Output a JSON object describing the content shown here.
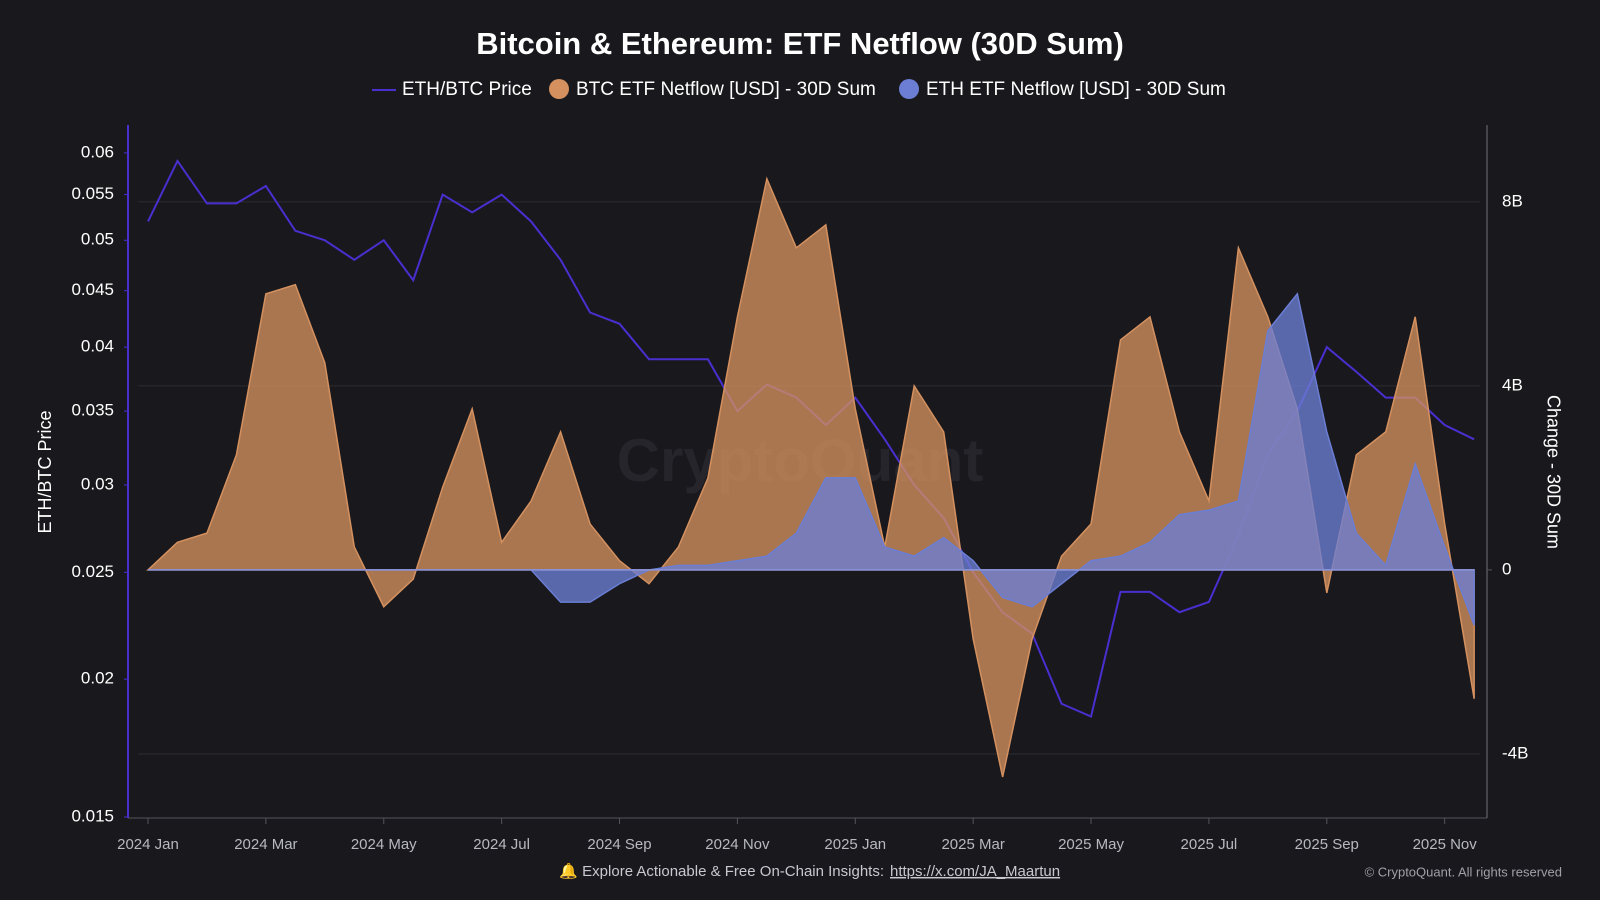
{
  "chart_data": {
    "type": "line",
    "title": "Bitcoin & Ethereum: ETF Netflow (30D Sum)",
    "ylabel": "ETH/BTC Price",
    "y2label": "Change - 30D Sum",
    "categories": [
      "2024 Jan",
      null,
      null,
      null,
      "2024 Mar",
      null,
      null,
      null,
      "2024 May",
      null,
      null,
      null,
      "2024 Jul",
      null,
      null,
      null,
      "2024 Sep",
      null,
      null,
      null,
      "2024 Nov",
      null,
      null,
      null,
      "2025 Jan",
      null,
      null,
      null,
      "2025 Mar",
      null,
      null,
      null,
      "2025 May",
      null,
      null,
      null,
      "2025 Jul",
      null,
      null,
      null,
      "2025 Sep",
      null,
      null,
      null,
      "2025 Nov",
      null
    ],
    "series": [
      {
        "name": "ETH/BTC Price",
        "type": "line",
        "color": "#4a2fd0",
        "values": [
          0.052,
          0.059,
          0.054,
          0.054,
          0.056,
          0.051,
          0.05,
          0.048,
          0.05,
          0.046,
          0.055,
          0.053,
          0.055,
          0.052,
          0.048,
          0.043,
          0.042,
          0.039,
          0.039,
          0.039,
          0.035,
          0.037,
          0.036,
          0.034,
          0.036,
          0.033,
          0.03,
          0.028,
          0.025,
          0.023,
          0.022,
          0.019,
          0.0185,
          0.024,
          0.024,
          0.023,
          0.0235,
          0.027,
          0.032,
          0.035,
          0.04,
          0.038,
          0.036,
          0.036,
          0.034,
          0.033
        ]
      },
      {
        "name": "BTC ETF Netflow [USD] - 30D Sum",
        "type": "area",
        "axis": "y2",
        "color": "#d4915f",
        "values": [
          0,
          600000000,
          800000000,
          2500000000,
          6000000000,
          6200000000,
          4500000000,
          500000000,
          -800000000,
          -200000000,
          1800000000,
          3500000000,
          600000000,
          1500000000,
          3000000000,
          1000000000,
          200000000,
          -300000000,
          500000000,
          2000000000,
          5500000000,
          8500000000,
          7000000000,
          7500000000,
          3500000000,
          500000000,
          4000000000,
          3000000000,
          -1500000000,
          -4500000000,
          -1500000000,
          300000000,
          1000000000,
          5000000000,
          5500000000,
          3000000000,
          1500000000,
          7000000000,
          5500000000,
          3500000000,
          -500000000,
          2500000000,
          3000000000,
          5500000000,
          1000000000,
          -2800000000
        ]
      },
      {
        "name": "ETH ETF Netflow [USD] - 30D Sum",
        "type": "area",
        "axis": "y2",
        "color": "#6b7ed4",
        "values": [
          0,
          0,
          0,
          0,
          0,
          0,
          0,
          0,
          0,
          0,
          0,
          0,
          0,
          0,
          -700000000,
          -700000000,
          -300000000,
          0,
          100000000,
          100000000,
          200000000,
          300000000,
          800000000,
          2000000000,
          2000000000,
          500000000,
          300000000,
          700000000,
          200000000,
          -600000000,
          -800000000,
          -300000000,
          200000000,
          300000000,
          600000000,
          1200000000,
          1300000000,
          1500000000,
          5200000000,
          6000000000,
          3000000000,
          800000000,
          100000000,
          2300000000,
          500000000,
          -1200000000
        ]
      }
    ],
    "ylim": [
      0.015,
      0.0636
    ],
    "log_scale": true,
    "yticks": [
      0.015,
      0.02,
      0.025,
      0.03,
      0.035,
      0.04,
      0.045,
      0.05,
      0.055,
      0.06
    ],
    "y2lim": [
      -5370000000,
      9670000000
    ],
    "y2ticks": [
      {
        "value": -4000000000,
        "label": "-4B"
      },
      0,
      {
        "value": 4000000000,
        "label": "4B"
      },
      {
        "value": 8000000000,
        "label": "8B"
      }
    ],
    "grid": true,
    "watermark": "CryptoQuant",
    "footer": "🔔 Explore Actionable & Free On-Chain Insights:",
    "footer_link": "https://x.com/JA_Maartun",
    "copyright": "© CryptoQuant. All rights reserved"
  }
}
